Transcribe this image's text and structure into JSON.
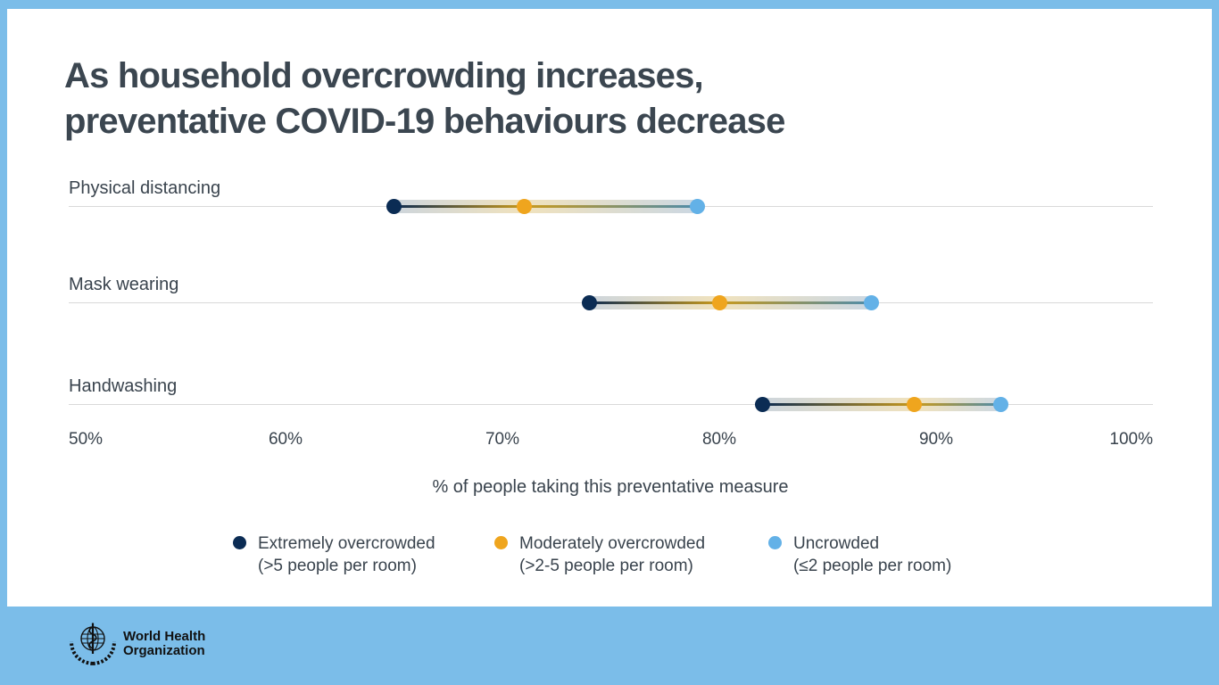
{
  "colors": {
    "background": "#7bbde9",
    "card": "#ffffff",
    "title_text": "#3b4650",
    "grid": "#d9d9d9",
    "band_grey": "#cdd5dc",
    "band_amber": "#f0e2bd",
    "band_grey_blue": "#cbd7e2",
    "line_navy": "#0f2c51",
    "line_gold": "#c89a1e",
    "line_teal": "#4f8cab"
  },
  "title": {
    "line1": "As household overcrowding increases,",
    "line2": "preventative COVID-19 behaviours decrease"
  },
  "chart_data": {
    "type": "dumbbell",
    "categories": [
      "Physical distancing",
      "Mask wearing",
      "Handwashing"
    ],
    "series": [
      {
        "name": "Extremely overcrowded (>5 people per room)",
        "color": "#0b2c54",
        "values": [
          65,
          74,
          82
        ]
      },
      {
        "name": "Moderately overcrowded (>2-5 people per room)",
        "color": "#efa51e",
        "values": [
          71,
          80,
          89
        ]
      },
      {
        "name": "Uncrowded (≤2 people per room)",
        "color": "#63b1e7",
        "values": [
          79,
          87,
          93
        ]
      }
    ],
    "x_ticks": [
      "50%",
      "60%",
      "70%",
      "80%",
      "90%",
      "100%"
    ],
    "xlim": [
      50,
      100
    ],
    "xlabel": "% of people taking this preventative measure",
    "grid": "one horizontal line per category row",
    "legend_position": "bottom"
  },
  "legend": {
    "items": [
      {
        "label": "Extremely overcrowded",
        "sublabel": "(>5 people per room)",
        "color": "#0b2c54"
      },
      {
        "label": "Moderately overcrowded",
        "sublabel": "(>2-5 people per room)",
        "color": "#efa51e"
      },
      {
        "label": "Uncrowded",
        "sublabel": "(≤2 people per room)",
        "color": "#63b1e7"
      }
    ]
  },
  "footer": {
    "logo_line1": "World Health",
    "logo_line2": "Organization"
  }
}
